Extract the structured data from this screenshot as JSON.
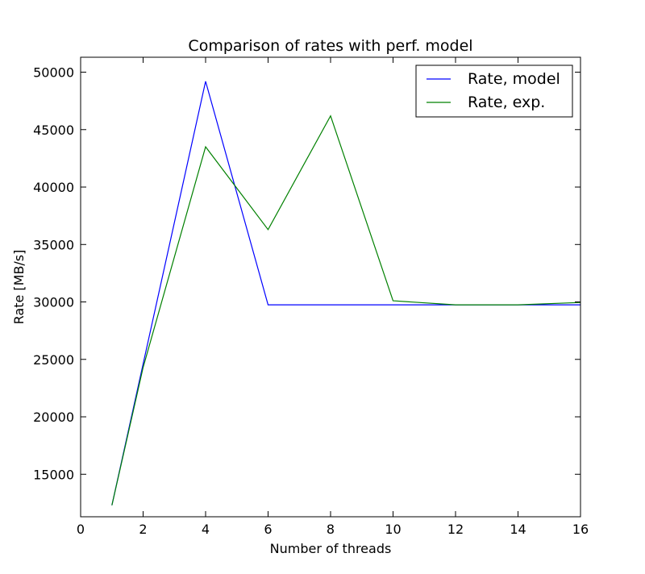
{
  "chart_data": {
    "type": "line",
    "title": "Comparison of rates with perf. model",
    "xlabel": "Number of threads",
    "ylabel": "Rate [MB/s]",
    "xlim": [
      0,
      16
    ],
    "ylim": [
      11300,
      51300
    ],
    "xticks": [
      "0",
      "2",
      "4",
      "6",
      "8",
      "10",
      "12",
      "14",
      "16"
    ],
    "yticks": [
      "15000",
      "20000",
      "25000",
      "30000",
      "35000",
      "40000",
      "45000",
      "50000"
    ],
    "grid": false,
    "legend_position": "top-right",
    "series": [
      {
        "name": "Rate, model",
        "color": "#0000ff",
        "x": [
          1,
          2,
          4,
          6,
          8,
          10,
          12,
          14,
          16
        ],
        "y": [
          12300,
          24600,
          49200,
          29750,
          29750,
          29750,
          29750,
          29750,
          29750
        ]
      },
      {
        "name": "Rate, exp.",
        "color": "#008000",
        "x": [
          1,
          2,
          4,
          6,
          8,
          10,
          12,
          14,
          16
        ],
        "y": [
          12300,
          24300,
          43500,
          36300,
          46200,
          30100,
          29750,
          29750,
          29950
        ]
      }
    ]
  }
}
